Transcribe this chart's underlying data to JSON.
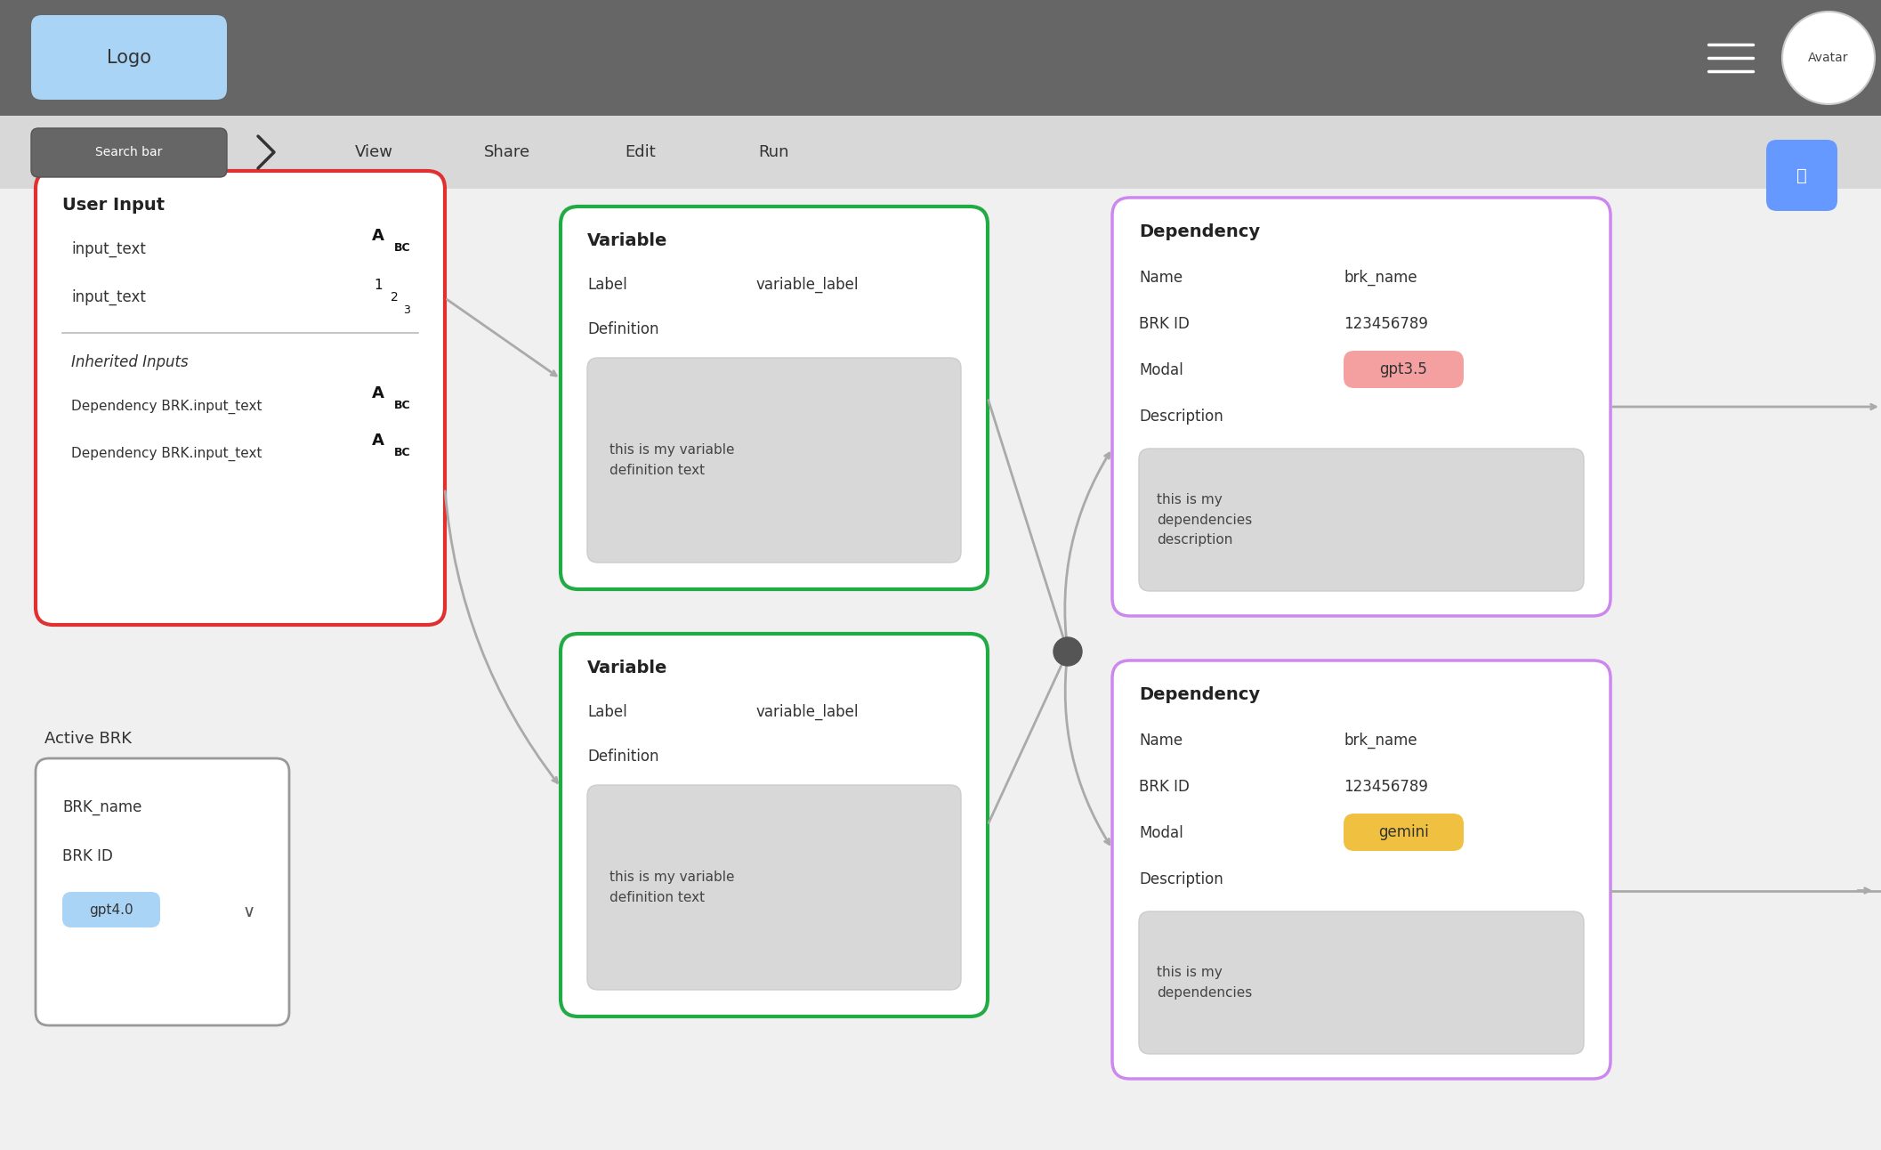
{
  "bg_color": "#e8e8e8",
  "header_color": "#666666",
  "navbar_color": "#d8d8d8",
  "logo_color": "#aad4f5",
  "logo_text": "Logo",
  "avatar_text": "Avatar",
  "search_bar_color": "#666666",
  "search_bar_text": "Search bar",
  "nav_items": [
    "View",
    "Share",
    "Edit",
    "Run"
  ],
  "content_bg": "#f0f0f0",
  "user_input_box": {
    "title": "User Input",
    "border_color": "#e03030",
    "bg_color": "#ffffff",
    "items": [
      {
        "label": "input_text",
        "icon": "abc"
      },
      {
        "label": "input_text",
        "icon": "123"
      }
    ],
    "inherited_title": "Inherited Inputs",
    "inherited_items": [
      {
        "label": "Dependency BRK.input_text",
        "icon": "abc"
      },
      {
        "label": "Dependency BRK.input_text",
        "icon": "abc"
      }
    ]
  },
  "active_brk_box": {
    "title": "Active BRK",
    "bg_color": "#ffffff",
    "border_color": "#999999",
    "items": [
      {
        "label": "BRK_name"
      },
      {
        "label": "BRK ID"
      },
      {
        "badge": "gpt4.0",
        "badge_color": "#aad4f5"
      }
    ]
  },
  "variable_boxes": [
    {
      "title": "Variable",
      "border_color": "#22aa44",
      "bg_color": "#ffffff",
      "label": "Label",
      "label_value": "variable_label",
      "definition_label": "Definition",
      "definition_text": "this is my variable\ndefinition text"
    },
    {
      "title": "Variable",
      "border_color": "#22aa44",
      "bg_color": "#ffffff",
      "label": "Label",
      "label_value": "variable_label",
      "definition_label": "Definition",
      "definition_text": "this is my variable\ndefinition text"
    }
  ],
  "dependency_boxes": [
    {
      "title": "Dependency",
      "border_color": "#cc88ee",
      "bg_color": "#ffffff",
      "name_label": "Name",
      "name_value": "brk_name",
      "brk_id_label": "BRK ID",
      "brk_id_value": "123456789",
      "modal_label": "Modal",
      "modal_badge": "gpt3.5",
      "modal_badge_color": "#f4a0a0",
      "desc_label": "Description",
      "desc_text": "this is my\ndependencies\ndescription"
    },
    {
      "title": "Dependency",
      "border_color": "#cc88ee",
      "bg_color": "#ffffff",
      "name_label": "Name",
      "name_value": "brk_name",
      "brk_id_label": "BRK ID",
      "brk_id_value": "123456789",
      "modal_label": "Modal",
      "modal_badge": "gemini",
      "modal_badge_color": "#f0c040",
      "desc_label": "Description",
      "desc_text": "this is my\ndependencies"
    }
  ],
  "cursor_icon_color": "#6699ff",
  "arrow_color": "#aaaaaa",
  "merge_dot_color": "#555555"
}
